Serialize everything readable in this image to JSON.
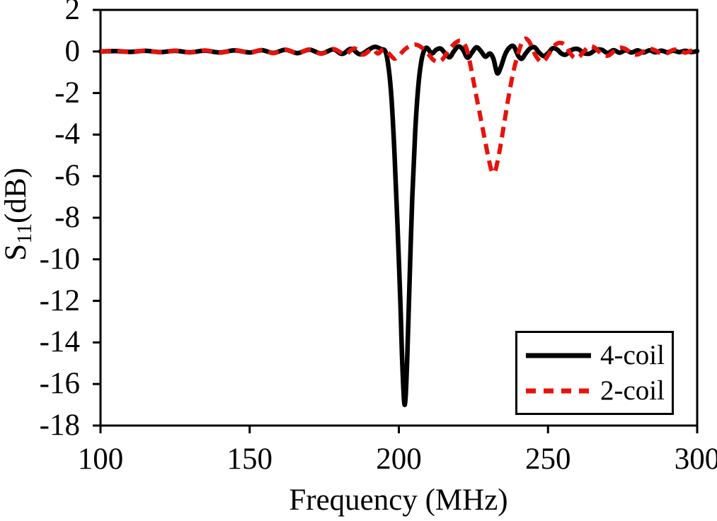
{
  "figure": {
    "background_color": "#ffffff",
    "axis_color": "#000000",
    "text_color": "#000000"
  },
  "chart_data": {
    "type": "line",
    "title": "",
    "xlabel": "Frequency (MHz)",
    "ylabel": "S11(dB)",
    "ylabel_parts": {
      "prefix": "S",
      "sub": "11",
      "suffix": "(dB)"
    },
    "xlim": [
      100,
      300
    ],
    "ylim": [
      -18,
      2
    ],
    "xticks": [
      100,
      150,
      200,
      250,
      300
    ],
    "yticks": [
      2,
      0,
      -2,
      -4,
      -6,
      -8,
      -10,
      -12,
      -14,
      -16,
      -18
    ],
    "grid": false,
    "legend_position": "inside-bottom-right",
    "series": [
      {
        "name": "4-coil",
        "color": "#000000",
        "style": "solid",
        "line_width": 6.5,
        "points": [
          [
            100,
            0
          ],
          [
            105,
            0.02
          ],
          [
            110,
            -0.02
          ],
          [
            115,
            0.03
          ],
          [
            120,
            -0.03
          ],
          [
            125,
            0.03
          ],
          [
            130,
            -0.04
          ],
          [
            135,
            0.04
          ],
          [
            140,
            -0.05
          ],
          [
            145,
            0.05
          ],
          [
            150,
            -0.05
          ],
          [
            154,
            0.06
          ],
          [
            158,
            -0.07
          ],
          [
            162,
            0.08
          ],
          [
            166,
            -0.08
          ],
          [
            170,
            0.09
          ],
          [
            174,
            -0.1
          ],
          [
            178,
            0.1
          ],
          [
            181,
            -0.12
          ],
          [
            184,
            0.13
          ],
          [
            187,
            -0.14
          ],
          [
            190,
            0.1
          ],
          [
            192,
            0.22
          ],
          [
            194,
            0.12
          ],
          [
            195.5,
            0
          ],
          [
            196.5,
            -0.7
          ],
          [
            197.5,
            -2.2
          ],
          [
            198.5,
            -4.8
          ],
          [
            199.5,
            -8.2
          ],
          [
            200.5,
            -12
          ],
          [
            201.2,
            -15.2
          ],
          [
            202,
            -17
          ],
          [
            202.8,
            -14.8
          ],
          [
            203.6,
            -11
          ],
          [
            204.5,
            -7
          ],
          [
            205.5,
            -3.8
          ],
          [
            206.5,
            -1.7
          ],
          [
            207.5,
            -0.5
          ],
          [
            208.5,
            0.05
          ],
          [
            209.5,
            0.17
          ],
          [
            211,
            -0.1
          ],
          [
            212.5,
            0.08
          ],
          [
            214,
            0.14
          ],
          [
            215.5,
            -0.08
          ],
          [
            217,
            -0.28
          ],
          [
            218.5,
            0.02
          ],
          [
            220,
            0.24
          ],
          [
            221.5,
            0.08
          ],
          [
            223,
            -0.3
          ],
          [
            224.5,
            -0.05
          ],
          [
            226,
            0.2
          ],
          [
            227.5,
            0.02
          ],
          [
            229,
            -0.25
          ],
          [
            230.5,
            -0.1
          ],
          [
            231.7,
            -0.35
          ],
          [
            233,
            -1.05
          ],
          [
            234.3,
            -0.7
          ],
          [
            235.6,
            -0.15
          ],
          [
            237,
            0.18
          ],
          [
            238.5,
            0.25
          ],
          [
            240,
            -0.2
          ],
          [
            241.2,
            -0.35
          ],
          [
            242.5,
            -0.1
          ],
          [
            244,
            0.15
          ],
          [
            245.5,
            0.2
          ],
          [
            247,
            -0.05
          ],
          [
            248.5,
            -0.22
          ],
          [
            250,
            -0.08
          ],
          [
            251.5,
            0.15
          ],
          [
            253,
            0.1
          ],
          [
            254.5,
            -0.1
          ],
          [
            256,
            -0.15
          ],
          [
            258,
            0.08
          ],
          [
            260,
            0.12
          ],
          [
            262,
            -0.08
          ],
          [
            264,
            -0.1
          ],
          [
            266,
            0.08
          ],
          [
            268,
            0.08
          ],
          [
            270,
            -0.07
          ],
          [
            272,
            0.06
          ],
          [
            274,
            -0.06
          ],
          [
            276,
            0.06
          ],
          [
            278,
            -0.05
          ],
          [
            280,
            0.05
          ],
          [
            282,
            -0.05
          ],
          [
            284,
            0.05
          ],
          [
            286,
            -0.04
          ],
          [
            288,
            0.04
          ],
          [
            290,
            -0.04
          ],
          [
            292,
            0.04
          ],
          [
            294,
            -0.03
          ],
          [
            296,
            0.03
          ],
          [
            298,
            -0.03
          ],
          [
            300,
            0.02
          ]
        ]
      },
      {
        "name": "2-coil",
        "color": "#e8120c",
        "style": "dashed",
        "line_width": 6,
        "points": [
          [
            100,
            0
          ],
          [
            105,
            0.03
          ],
          [
            110,
            -0.03
          ],
          [
            115,
            0.04
          ],
          [
            120,
            -0.04
          ],
          [
            125,
            0.04
          ],
          [
            130,
            -0.05
          ],
          [
            135,
            0.05
          ],
          [
            140,
            -0.06
          ],
          [
            145,
            0.06
          ],
          [
            150,
            -0.06
          ],
          [
            154,
            0.07
          ],
          [
            158,
            -0.08
          ],
          [
            162,
            0.09
          ],
          [
            166,
            -0.09
          ],
          [
            170,
            0.1
          ],
          [
            174,
            -0.11
          ],
          [
            178,
            0.12
          ],
          [
            182,
            -0.13
          ],
          [
            185,
            0.15
          ],
          [
            188,
            -0.15
          ],
          [
            191,
            0.12
          ],
          [
            193,
            -0.1
          ],
          [
            195,
            0.12
          ],
          [
            197,
            -0.15
          ],
          [
            198.5,
            -0.35
          ],
          [
            200,
            -0.2
          ],
          [
            202,
            0.1
          ],
          [
            204,
            0.28
          ],
          [
            206,
            0.32
          ],
          [
            208,
            0.15
          ],
          [
            210,
            -0.15
          ],
          [
            211.5,
            -0.4
          ],
          [
            213,
            -0.5
          ],
          [
            214.5,
            -0.4
          ],
          [
            216,
            -0.1
          ],
          [
            217.5,
            0.2
          ],
          [
            219,
            0.42
          ],
          [
            220.5,
            0.52
          ],
          [
            221.8,
            0.4
          ],
          [
            223,
            0
          ],
          [
            224.2,
            -0.8
          ],
          [
            225.5,
            -1.8
          ],
          [
            227,
            -2.9
          ],
          [
            228.5,
            -4
          ],
          [
            230,
            -5.1
          ],
          [
            231,
            -5.7
          ],
          [
            231.8,
            -5.85
          ],
          [
            232.6,
            -5.6
          ],
          [
            234,
            -4.6
          ],
          [
            235.5,
            -3.3
          ],
          [
            237,
            -2
          ],
          [
            238.5,
            -0.9
          ],
          [
            240,
            -0.1
          ],
          [
            241.3,
            0.45
          ],
          [
            242.5,
            0.62
          ],
          [
            243.8,
            0.45
          ],
          [
            245,
            0.05
          ],
          [
            246.3,
            -0.3
          ],
          [
            247.8,
            -0.5
          ],
          [
            249.3,
            -0.35
          ],
          [
            250.8,
            0
          ],
          [
            252.3,
            0.3
          ],
          [
            254,
            0.42
          ],
          [
            255.8,
            0.3
          ],
          [
            257.3,
            -0.05
          ],
          [
            258.8,
            -0.3
          ],
          [
            260.3,
            -0.28
          ],
          [
            262,
            0
          ],
          [
            263.8,
            0.25
          ],
          [
            265.5,
            0.2
          ],
          [
            267,
            0
          ],
          [
            268.8,
            -0.2
          ],
          [
            270.5,
            -0.18
          ],
          [
            272,
            0
          ],
          [
            274,
            0.18
          ],
          [
            276,
            0.12
          ],
          [
            278,
            -0.1
          ],
          [
            280,
            -0.15
          ],
          [
            282,
            0
          ],
          [
            284,
            0.13
          ],
          [
            286,
            0.05
          ],
          [
            288,
            -0.1
          ],
          [
            290,
            -0.08
          ],
          [
            292,
            0.08
          ],
          [
            294,
            0.06
          ],
          [
            296,
            -0.06
          ],
          [
            298,
            0.03
          ],
          [
            300,
            0.02
          ]
        ]
      }
    ]
  }
}
